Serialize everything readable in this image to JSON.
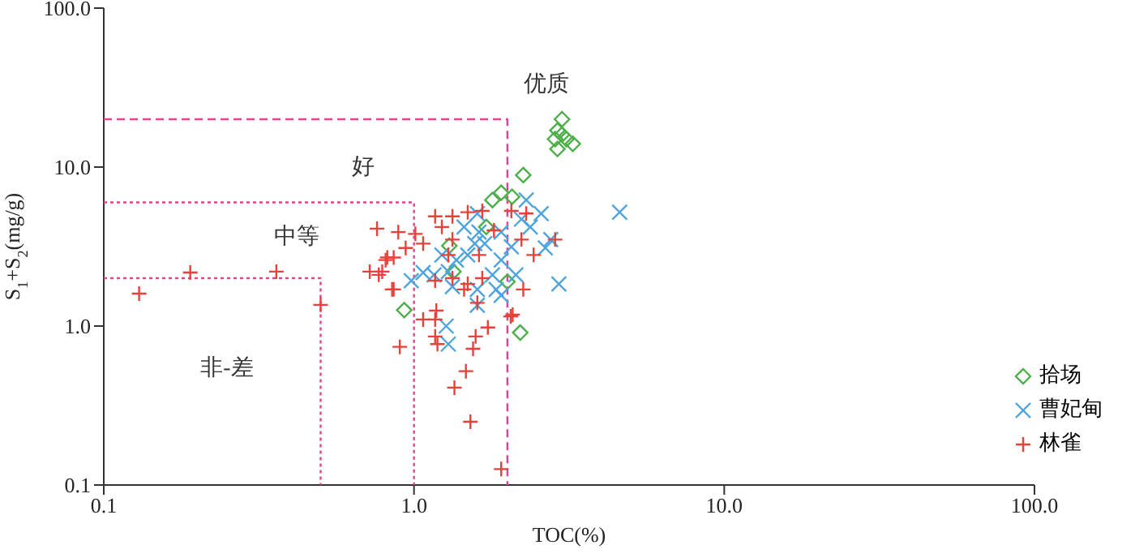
{
  "chart_data": {
    "type": "scatter",
    "xlabel": "TOC(%)",
    "ylabel": "S$_{1}$+S$_{2}$(mg/g)",
    "log": "xy",
    "xlim": [
      0.1,
      100
    ],
    "ylim": [
      0.1,
      100
    ],
    "xticks": [
      0.1,
      {
        "value": 1,
        "label": "1.0"
      },
      {
        "value": 10,
        "label": "10.0"
      },
      {
        "value": 100,
        "label": "100.0"
      }
    ],
    "yticks": [
      0.1,
      {
        "value": 1,
        "label": "1.0"
      },
      {
        "value": 10,
        "label": "10.0"
      },
      {
        "value": 100,
        "label": "100.0"
      }
    ],
    "legend": "bottom right",
    "grid": false,
    "annotations": [
      "优质",
      "好",
      "中等",
      "非-差"
    ],
    "series": [
      {
        "type": "line",
        "color": "#e8418f",
        "line_style": "dotted",
        "marker": "none",
        "x": [
          0.1,
          0.5,
          0.5
        ],
        "values": [
          2,
          2,
          0.1
        ]
      },
      {
        "type": "line",
        "color": "#e8418f",
        "line_style": "dotted",
        "marker": "none",
        "x": [
          0.1,
          1,
          1
        ],
        "values": [
          6,
          6,
          0.1
        ]
      },
      {
        "type": "line",
        "color": "#e8418f",
        "line_style": "dashed",
        "marker": "none",
        "x": [
          0.1,
          2,
          2
        ],
        "values": [
          20,
          20,
          0.1
        ]
      },
      {
        "name": "拾场",
        "color": "#4daf4a",
        "marker": "diamond",
        "x": [
          3.0,
          2.9,
          3.0,
          2.85,
          3.1,
          2.9,
          3.25,
          2.25,
          1.79,
          1.91,
          2.07,
          1.3,
          1.34,
          2.0,
          1.71,
          2.2,
          0.93
        ],
        "values": [
          20,
          17,
          16,
          15,
          15,
          13,
          14,
          8.9,
          6.2,
          6.9,
          6.5,
          3.2,
          2.2,
          1.9,
          4.2,
          0.91,
          1.26
        ]
      },
      {
        "name": "曹妃甸",
        "color": "#4ea5dd",
        "marker": "x",
        "x": [
          2.3,
          2.57,
          2.22,
          2.37,
          2.76,
          2.65,
          2.93,
          2.06,
          1.91,
          2.13,
          1.6,
          1.62,
          1.57,
          1.49,
          1.37,
          1.29,
          1.16,
          1.07,
          0.98,
          1.33,
          1.6,
          1.84,
          1.91,
          1.79,
          1.45,
          1.69,
          1.23,
          1.91,
          1.27,
          1.29,
          1.6,
          4.6
        ],
        "values": [
          6.2,
          5.1,
          4.7,
          4.2,
          3.5,
          3.1,
          1.84,
          3.15,
          2.6,
          2.1,
          5.1,
          3.9,
          3.3,
          2.8,
          2.6,
          2.2,
          2.1,
          2.17,
          1.93,
          1.77,
          1.7,
          1.7,
          1.56,
          2.1,
          4.2,
          3.3,
          2.8,
          3.9,
          1.0,
          0.77,
          1.35,
          5.2
        ]
      },
      {
        "name": "林雀",
        "color": "#e8413a",
        "marker": "cross",
        "x": [
          0.13,
          0.19,
          0.36,
          0.5,
          0.76,
          0.72,
          0.77,
          0.82,
          0.85,
          0.89,
          1.01,
          0.94,
          1.07,
          0.86,
          0.81,
          0.79,
          0.86,
          1.17,
          1.33,
          1.49,
          1.23,
          1.33,
          1.29,
          1.17,
          1.33,
          1.49,
          1.45,
          1.66,
          1.62,
          1.66,
          1.81,
          2.06,
          2.3,
          2.22,
          2.43,
          2.85,
          2.25,
          1.6,
          1.18,
          1.07,
          1.17,
          1.17,
          1.19,
          0.9,
          1.58,
          1.55,
          1.73,
          2.08,
          2.05,
          1.47,
          1.35,
          1.52,
          1.91
        ],
        "values": [
          1.6,
          2.17,
          2.2,
          1.36,
          4.1,
          2.2,
          2.1,
          2.7,
          1.7,
          3.9,
          3.8,
          3.1,
          3.3,
          2.7,
          2.6,
          2.2,
          1.7,
          4.9,
          4.9,
          5.2,
          4.2,
          3.5,
          2.8,
          1.93,
          2.0,
          1.84,
          1.7,
          2.0,
          2.8,
          5.3,
          4.0,
          5.3,
          5.1,
          3.5,
          2.8,
          3.5,
          1.7,
          1.4,
          1.25,
          1.1,
          1.1,
          0.86,
          0.77,
          0.74,
          0.86,
          0.72,
          0.98,
          1.18,
          1.15,
          0.52,
          0.41,
          0.25,
          0.126
        ]
      }
    ]
  }
}
